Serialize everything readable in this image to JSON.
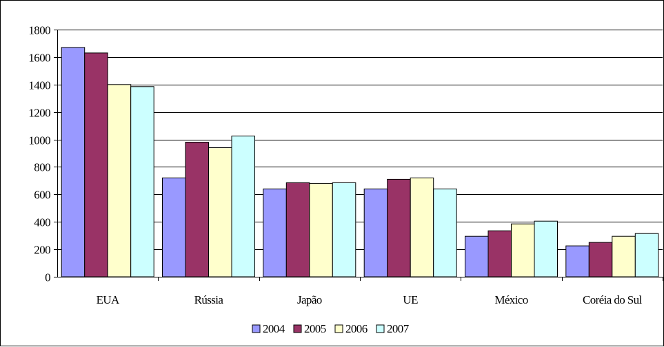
{
  "chart_data": {
    "type": "bar",
    "title": "",
    "xlabel": "",
    "ylabel": "",
    "categories": [
      "EUA",
      "Rússia",
      "Japão",
      "UE",
      "México",
      "Coréia do Sul"
    ],
    "series": [
      {
        "name": "2004",
        "color": "#9999FF",
        "values": [
          1670,
          720,
          640,
          640,
          295,
          225
        ]
      },
      {
        "name": "2005",
        "color": "#993366",
        "values": [
          1630,
          980,
          685,
          710,
          335,
          250
        ]
      },
      {
        "name": "2006",
        "color": "#FFFFCC",
        "values": [
          1400,
          940,
          680,
          720,
          385,
          295
        ]
      },
      {
        "name": "2007",
        "color": "#CCFFFF",
        "values": [
          1385,
          1025,
          685,
          640,
          405,
          315
        ]
      }
    ],
    "ylim": [
      0,
      1800
    ],
    "yticks": [
      0,
      200,
      400,
      600,
      800,
      1000,
      1200,
      1400,
      1600,
      1800
    ],
    "grid": true,
    "legend_position": "bottom"
  }
}
